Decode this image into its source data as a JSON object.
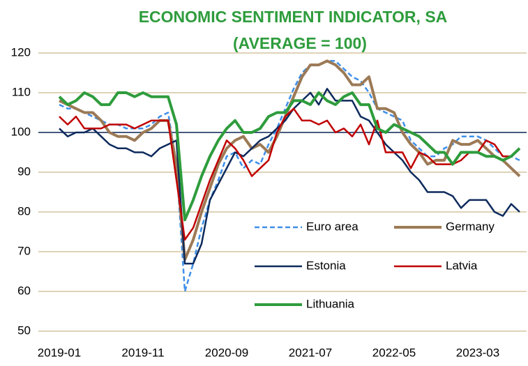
{
  "chart_data": {
    "type": "line",
    "title": "ECONOMIC SENTIMENT INDICATOR, SA",
    "subtitle": "(AVERAGE = 100)",
    "categories": [
      "2019-01",
      null,
      null,
      null,
      null,
      null,
      null,
      null,
      null,
      null,
      "2019-11",
      null,
      null,
      null,
      null,
      null,
      null,
      null,
      null,
      null,
      "2020-09",
      null,
      null,
      null,
      null,
      null,
      null,
      null,
      null,
      null,
      "2021-07",
      null,
      null,
      null,
      null,
      null,
      null,
      null,
      null,
      null,
      "2022-05",
      null,
      null,
      null,
      null,
      null,
      null,
      null,
      null,
      null,
      "2023-03",
      null,
      null,
      null,
      null,
      null
    ],
    "series": [
      {
        "name": "Euro area",
        "color": "#3d8fe8",
        "dash": true,
        "line_width": 2.5,
        "values": [
          107,
          106,
          106,
          105,
          104,
          103,
          102,
          102,
          101,
          101,
          101,
          102,
          104,
          105,
          92,
          60,
          67,
          76,
          83,
          88,
          94,
          95,
          91,
          93,
          92,
          97,
          101,
          106,
          111,
          115,
          117,
          117,
          118,
          118,
          116,
          114,
          113,
          110,
          106,
          105,
          104,
          103,
          98,
          96,
          94,
          94,
          96,
          97,
          99,
          99,
          99,
          98,
          96,
          94,
          94,
          93
        ]
      },
      {
        "name": "Germany",
        "color": "#9c7a56",
        "dash": false,
        "line_width": 4,
        "values": [
          108,
          107,
          106,
          105,
          105,
          103,
          100,
          99,
          99,
          98,
          100,
          101,
          103,
          103,
          92,
          68,
          73,
          80,
          86,
          92,
          96,
          98,
          99,
          96,
          97,
          95,
          99,
          104,
          109,
          114,
          117,
          117,
          118,
          117,
          115,
          112,
          112,
          114,
          106,
          106,
          105,
          100,
          97,
          95,
          92,
          93,
          93,
          98,
          97,
          97,
          98,
          96,
          94,
          93,
          91,
          89
        ]
      },
      {
        "name": "Estonia",
        "color": "#0d2a5c",
        "dash": false,
        "line_width": 2.5,
        "values": [
          101,
          99,
          100,
          100,
          101,
          99,
          97,
          96,
          96,
          95,
          95,
          94,
          96,
          97,
          98,
          67,
          67,
          72,
          83,
          87,
          91,
          95,
          94,
          96,
          98,
          99,
          101,
          103,
          106,
          108,
          110,
          107,
          111,
          108,
          108,
          108,
          104,
          103,
          100,
          97,
          95,
          93,
          90,
          88,
          85,
          85,
          85,
          84,
          81,
          83,
          83,
          83,
          80,
          79,
          82,
          80
        ]
      },
      {
        "name": "Latvia",
        "color": "#c00000",
        "dash": false,
        "line_width": 2.5,
        "values": [
          104,
          102,
          104,
          101,
          101,
          101,
          102,
          102,
          102,
          101,
          102,
          103,
          103,
          103,
          88,
          73,
          76,
          82,
          88,
          93,
          98,
          96,
          93,
          89,
          91,
          93,
          100,
          104,
          106,
          103,
          103,
          102,
          103,
          100,
          101,
          99,
          102,
          97,
          103,
          95,
          95,
          95,
          91,
          95,
          94,
          92,
          92,
          92,
          93,
          95,
          95,
          98,
          97,
          94,
          94,
          96
        ]
      },
      {
        "name": "Lithuania",
        "color": "#2e9c3c",
        "dash": false,
        "line_width": 4,
        "values": [
          109,
          107,
          108,
          110,
          109,
          107,
          107,
          110,
          110,
          109,
          110,
          109,
          109,
          109,
          102,
          78,
          83,
          89,
          94,
          98,
          101,
          103,
          100,
          100,
          101,
          104,
          105,
          105,
          108,
          108,
          107,
          110,
          108,
          107,
          109,
          110,
          107,
          107,
          101,
          100,
          102,
          101,
          100,
          99,
          97,
          95,
          95,
          92,
          95,
          95,
          95,
          94,
          94,
          93,
          94,
          96
        ]
      }
    ],
    "ylim": [
      50,
      120
    ],
    "yticks": [
      50,
      60,
      70,
      80,
      90,
      100,
      110,
      120
    ],
    "grid": true,
    "reference_line": 100,
    "title_color": "#2e9c3c"
  }
}
